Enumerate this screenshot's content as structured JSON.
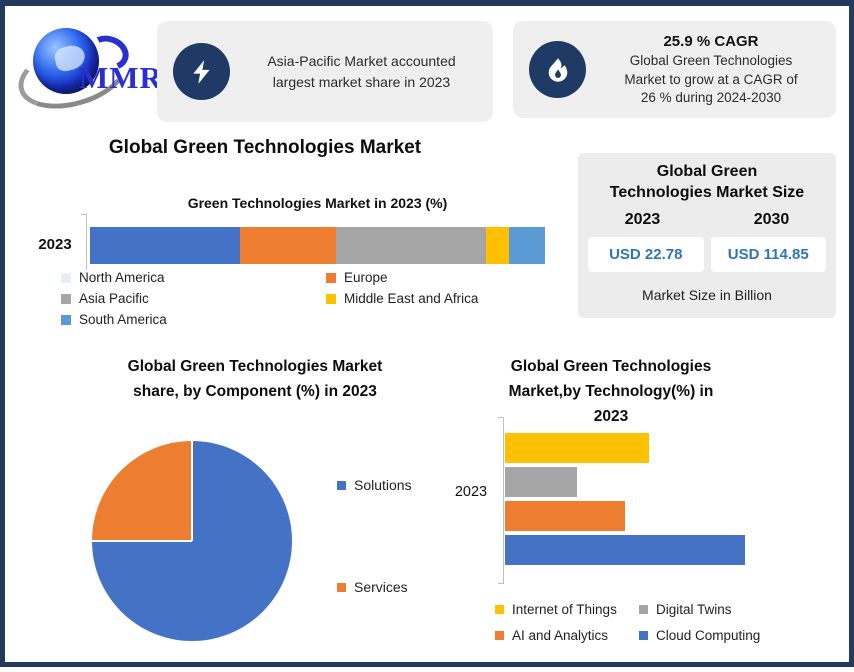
{
  "brand": {
    "logo_text": "MMR"
  },
  "header": {
    "highlight1": {
      "icon": "lightning-icon",
      "line1": "Asia-Pacific Market accounted",
      "line2": "largest market share in 2023"
    },
    "highlight2": {
      "icon": "flame-icon",
      "title": "25.9 % CAGR",
      "line1": "Global Green Technologies",
      "line2": "Market to grow at a CAGR of",
      "line3": "26 % during 2024-2030"
    }
  },
  "main_title": "Global Green Technologies Market",
  "market_size_panel": {
    "title_line1": "Global Green",
    "title_line2": "Technologies Market Size",
    "year_left": "2023",
    "year_right": "2030",
    "value_left": "USD 22.78",
    "value_right": "USD 114.85",
    "caption": "Market Size in Billion"
  },
  "sections": {
    "chart1": {
      "title": "Green Technologies Market in 2023 (%)",
      "category": "2023"
    },
    "pie": {
      "title_line1": "Global Green Technologies Market",
      "title_line2": "share, by Component (%) in 2023"
    },
    "tech": {
      "title_line1": "Global Green Technologies",
      "title_line2": "Market,by Technology(%) in",
      "title_line3": "2023",
      "category": "2023"
    }
  },
  "colors": {
    "frame_border": "#24395E",
    "icon_circle": "#1F3A64",
    "callout_bg": "#EFEFEF",
    "panel_bg": "#ECECEC",
    "usd_value_blue": "#2E75B6"
  },
  "chart_data": [
    {
      "type": "bar",
      "variant": "stacked-horizontal",
      "title": "Green Technologies Market in 2023 (%)",
      "categories": [
        "2023"
      ],
      "values_estimated_from_pixels": true,
      "series": [
        {
          "name": "North America",
          "value": 33,
          "color": "#4472C4",
          "legend_marker_color": "#E8EDF5"
        },
        {
          "name": "Europe",
          "value": 21,
          "color": "#ED7D31"
        },
        {
          "name": "Asia Pacific",
          "value": 33,
          "color": "#A5A5A5"
        },
        {
          "name": "Middle East and Africa",
          "value": 5,
          "color": "#FFC000"
        },
        {
          "name": "South America",
          "value": 8,
          "color": "#5B9BD5"
        }
      ]
    },
    {
      "type": "pie",
      "title": "Global Green Technologies Market share, by Component (%) in 2023",
      "legend_position": "right",
      "values_estimated_from_pixels": true,
      "slices": [
        {
          "name": "Solutions",
          "value": 75,
          "color": "#4472C4"
        },
        {
          "name": "Services",
          "value": 25,
          "color": "#ED7D31"
        }
      ]
    },
    {
      "type": "bar",
      "variant": "horizontal",
      "title": "Global Green Technologies Market,by Technology(%) in 2023",
      "categories": [
        "2023"
      ],
      "legend_position": "bottom",
      "values_estimated_from_pixels": true,
      "series": [
        {
          "name": "Internet of Things",
          "value": 24,
          "color": "#FFC000"
        },
        {
          "name": "Digital Twins",
          "value": 12,
          "color": "#A5A5A5"
        },
        {
          "name": "AI and Analytics",
          "value": 20,
          "color": "#ED7D31"
        },
        {
          "name": "Cloud Computing",
          "value": 40,
          "color": "#4472C4"
        }
      ]
    }
  ]
}
